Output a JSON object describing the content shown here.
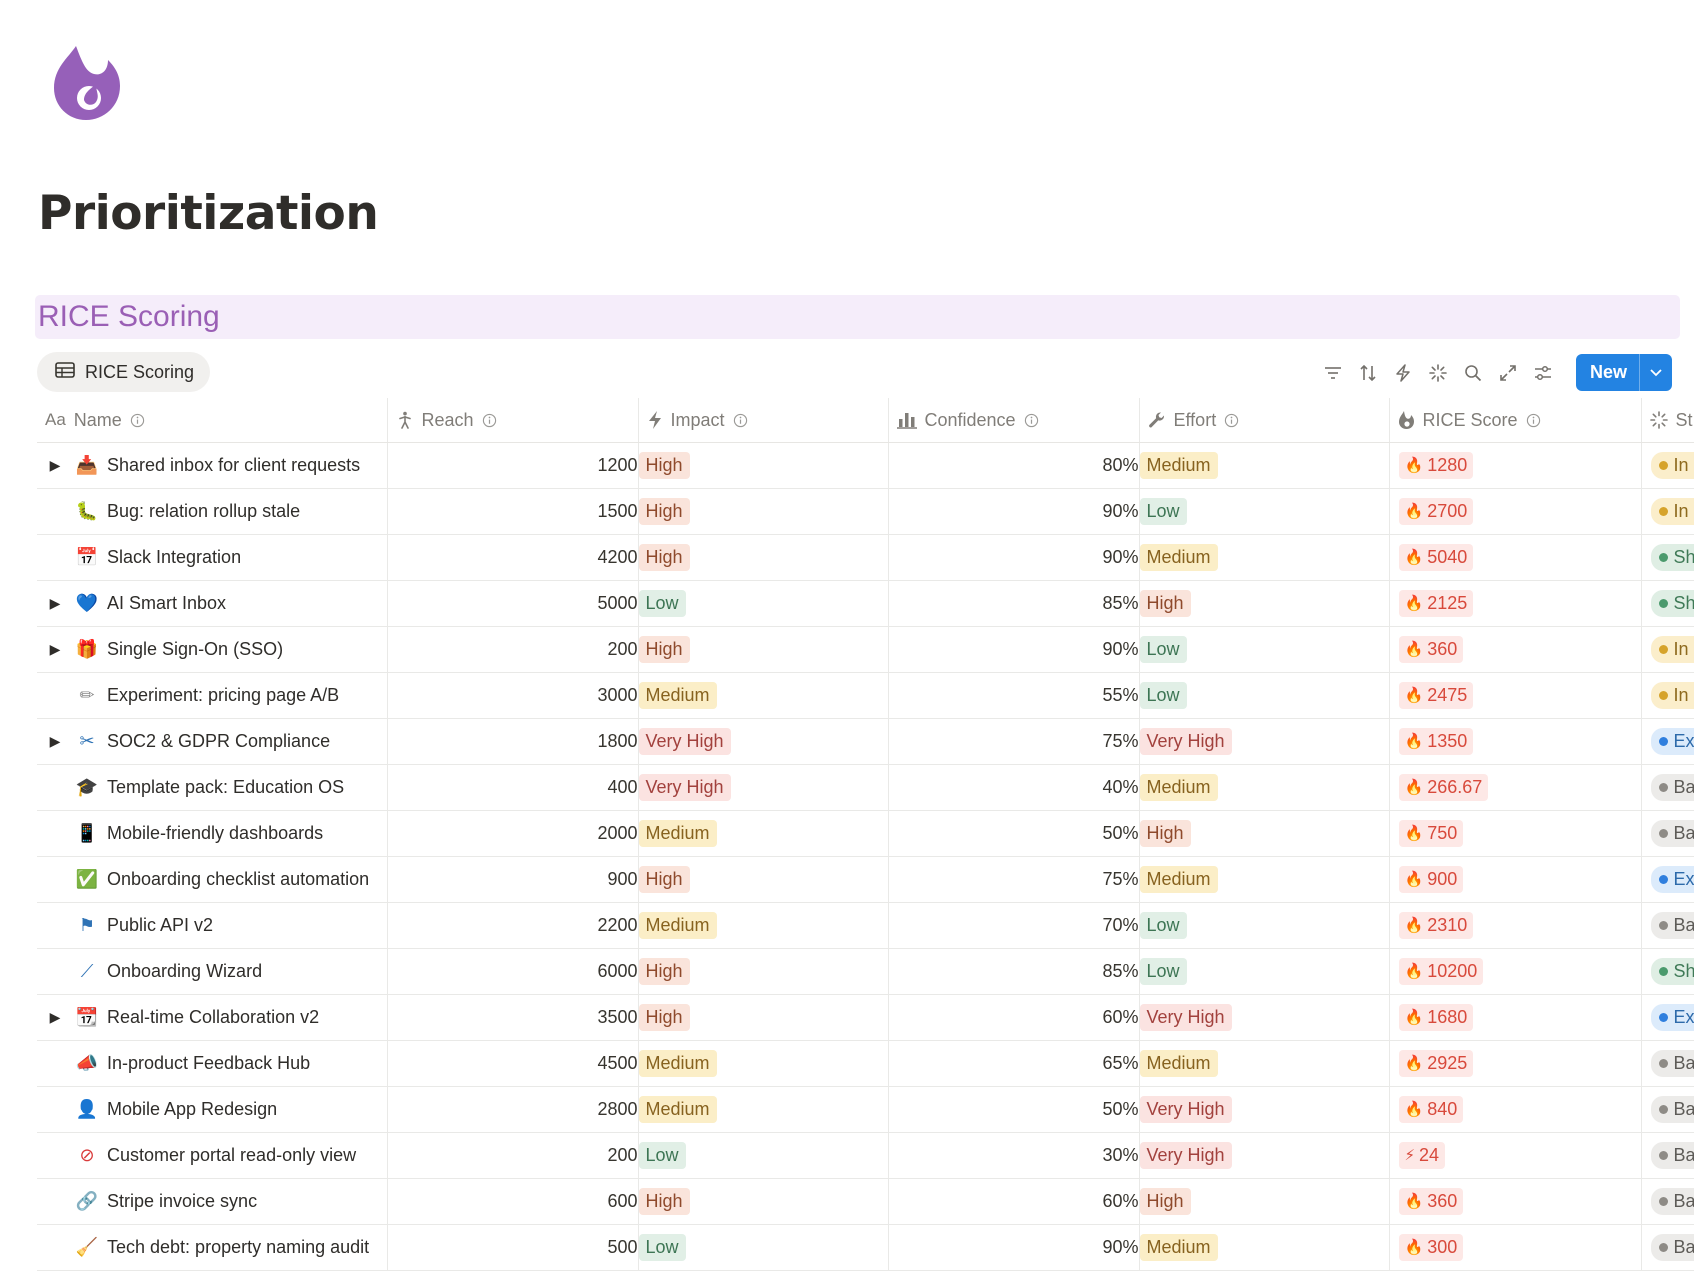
{
  "page": {
    "title": "Prioritization",
    "icon": "flame-icon",
    "section_header": "RICE Scoring"
  },
  "view": {
    "tab_label": "RICE Scoring",
    "tab_icon": "table-icon",
    "toolbar_icons": [
      "filter-icon",
      "sort-icon",
      "automation-icon",
      "loading-icon",
      "search-icon",
      "expand-icon",
      "settings-icon"
    ],
    "new_button_label": "New"
  },
  "columns": {
    "name": "Name",
    "reach": "Reach",
    "impact": "Impact",
    "confidence": "Confidence",
    "effort": "Effort",
    "rice_score": "RICE Score",
    "status": "St"
  },
  "colors": {
    "accent_blue": "#2383e2",
    "section_header_bg": "#f5edfa",
    "section_header_text": "#9a5fb5",
    "score_text": "#d8493b"
  },
  "rows": [
    {
      "name": "Shared inbox for client requests",
      "icon": "inbox-tray-icon",
      "expandable": true,
      "reach": "1200",
      "impact": "High",
      "confidence": "80%",
      "effort": "Medium",
      "score": "1280",
      "score_icon": "fire-icon",
      "status": "In p",
      "status_type": "inprog"
    },
    {
      "name": "Bug: relation rollup stale",
      "icon": "bug-icon",
      "expandable": false,
      "reach": "1500",
      "impact": "High",
      "confidence": "90%",
      "effort": "Low",
      "score": "2700",
      "score_icon": "fire-icon",
      "status": "In p",
      "status_type": "inprog"
    },
    {
      "name": "Slack Integration",
      "icon": "calendar-grid-icon",
      "expandable": false,
      "reach": "4200",
      "impact": "High",
      "confidence": "90%",
      "effort": "Medium",
      "score": "5040",
      "score_icon": "fire-icon",
      "status": "Shi",
      "status_type": "shipped"
    },
    {
      "name": "AI Smart Inbox",
      "icon": "heart-icon",
      "expandable": true,
      "reach": "5000",
      "impact": "Low",
      "confidence": "85%",
      "effort": "High",
      "score": "2125",
      "score_icon": "fire-icon",
      "status": "Shi",
      "status_type": "shipped"
    },
    {
      "name": "Single Sign-On (SSO)",
      "icon": "gift-icon",
      "expandable": true,
      "reach": "200",
      "impact": "High",
      "confidence": "90%",
      "effort": "Low",
      "score": "360",
      "score_icon": "fire-icon",
      "status": "In p",
      "status_type": "inprog"
    },
    {
      "name": "Experiment: pricing page A/B",
      "icon": "pencil-icon",
      "expandable": false,
      "reach": "3000",
      "impact": "Medium",
      "confidence": "55%",
      "effort": "Low",
      "score": "2475",
      "score_icon": "fire-icon",
      "status": "In p",
      "status_type": "inprog"
    },
    {
      "name": "SOC2 & GDPR Compliance",
      "icon": "scissors-icon",
      "expandable": true,
      "reach": "1800",
      "impact": "Very High",
      "confidence": "75%",
      "effort": "Very High",
      "score": "1350",
      "score_icon": "fire-icon",
      "status": "Exp",
      "status_type": "exp"
    },
    {
      "name": "Template pack: Education OS",
      "icon": "graduation-cap-icon",
      "expandable": false,
      "reach": "400",
      "impact": "Very High",
      "confidence": "40%",
      "effort": "Medium",
      "score": "266.67",
      "score_icon": "fire-icon",
      "status": "Bac",
      "status_type": "back"
    },
    {
      "name": "Mobile-friendly dashboards",
      "icon": "phone-icon",
      "expandable": false,
      "reach": "2000",
      "impact": "Medium",
      "confidence": "50%",
      "effort": "High",
      "score": "750",
      "score_icon": "fire-icon",
      "status": "Bac",
      "status_type": "back"
    },
    {
      "name": "Onboarding checklist automation",
      "icon": "check-box-icon",
      "expandable": false,
      "reach": "900",
      "impact": "High",
      "confidence": "75%",
      "effort": "Medium",
      "score": "900",
      "score_icon": "fire-icon",
      "status": "Exp",
      "status_type": "exp"
    },
    {
      "name": "Public API v2",
      "icon": "flag-icon",
      "expandable": false,
      "reach": "2200",
      "impact": "Medium",
      "confidence": "70%",
      "effort": "Low",
      "score": "2310",
      "score_icon": "fire-icon",
      "status": "Bac",
      "status_type": "back"
    },
    {
      "name": "Onboarding Wizard",
      "icon": "wand-icon",
      "expandable": false,
      "reach": "6000",
      "impact": "High",
      "confidence": "85%",
      "effort": "Low",
      "score": "10200",
      "score_icon": "fire-icon",
      "status": "Shi",
      "status_type": "shipped"
    },
    {
      "name": "Real-time Collaboration v2",
      "icon": "calendar-icon",
      "expandable": true,
      "reach": "3500",
      "impact": "High",
      "confidence": "60%",
      "effort": "Very High",
      "score": "1680",
      "score_icon": "fire-icon",
      "status": "Exp",
      "status_type": "exp"
    },
    {
      "name": "In-product Feedback Hub",
      "icon": "megaphone-icon",
      "expandable": false,
      "reach": "4500",
      "impact": "Medium",
      "confidence": "65%",
      "effort": "Medium",
      "score": "2925",
      "score_icon": "fire-icon",
      "status": "Bac",
      "status_type": "back"
    },
    {
      "name": "Mobile App Redesign",
      "icon": "person-icon",
      "expandable": false,
      "reach": "2800",
      "impact": "Medium",
      "confidence": "50%",
      "effort": "Very High",
      "score": "840",
      "score_icon": "fire-icon",
      "status": "Bac",
      "status_type": "back"
    },
    {
      "name": "Customer portal read-only view",
      "icon": "blocked-icon",
      "expandable": false,
      "reach": "200",
      "impact": "Low",
      "confidence": "30%",
      "effort": "Very High",
      "score": "24",
      "score_icon": "lightning-icon",
      "status": "Bac",
      "status_type": "back"
    },
    {
      "name": "Stripe invoice sync",
      "icon": "link-icon",
      "expandable": false,
      "reach": "600",
      "impact": "High",
      "confidence": "60%",
      "effort": "High",
      "score": "360",
      "score_icon": "fire-icon",
      "status": "Bac",
      "status_type": "back"
    },
    {
      "name": "Tech debt: property naming audit",
      "icon": "broom-icon",
      "expandable": false,
      "reach": "500",
      "impact": "Low",
      "confidence": "90%",
      "effort": "Medium",
      "score": "300",
      "score_icon": "fire-icon",
      "status": "Bac",
      "status_type": "back"
    }
  ]
}
